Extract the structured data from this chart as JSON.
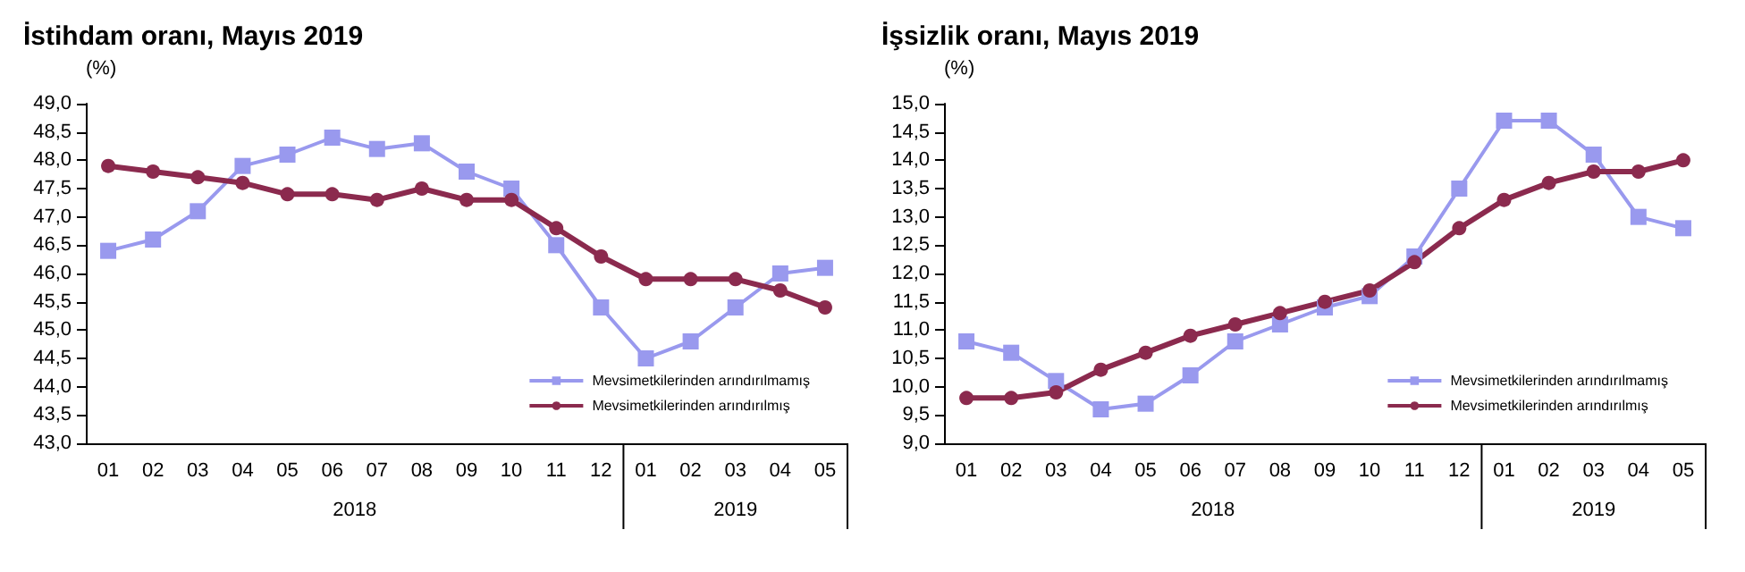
{
  "chart_data": [
    {
      "type": "line",
      "title": "İstihdam oranı, Mayıs 2019",
      "ylabel": "(%)",
      "categories": [
        "01",
        "02",
        "03",
        "04",
        "05",
        "06",
        "07",
        "08",
        "09",
        "10",
        "11",
        "12",
        "01",
        "02",
        "03",
        "04",
        "05"
      ],
      "series": [
        {
          "name": "Mevsimetkilerinden arındırılmamış",
          "color": "#9999ee",
          "marker": "square",
          "values": [
            46.4,
            46.6,
            47.1,
            47.9,
            48.1,
            48.4,
            48.2,
            48.3,
            47.8,
            47.5,
            46.5,
            45.4,
            44.5,
            44.8,
            45.4,
            46.0,
            46.1
          ]
        },
        {
          "name": "Mevsimetkilerinden arındırılmış",
          "color": "#8b2a4e",
          "marker": "circle",
          "values": [
            47.9,
            47.8,
            47.7,
            47.6,
            47.4,
            47.4,
            47.3,
            47.5,
            47.3,
            47.3,
            46.8,
            46.3,
            45.9,
            45.9,
            45.9,
            45.7,
            45.4
          ]
        }
      ],
      "ylim": [
        43,
        49
      ],
      "yticks": [
        {
          "value": 43,
          "label": "43,0"
        },
        {
          "value": 43.5,
          "label": "43,5"
        },
        {
          "value": 44,
          "label": "44,0"
        },
        {
          "value": 44.5,
          "label": "44,5"
        },
        {
          "value": 45,
          "label": "45,0"
        },
        {
          "value": 45.5,
          "label": "45,5"
        },
        {
          "value": 46,
          "label": "46,0"
        },
        {
          "value": 46.5,
          "label": "46,5"
        },
        {
          "value": 47,
          "label": "47,0"
        },
        {
          "value": 47.5,
          "label": "47,5"
        },
        {
          "value": 48,
          "label": "48,0"
        },
        {
          "value": 48.5,
          "label": "48,5"
        },
        {
          "value": 49,
          "label": "49,0"
        }
      ],
      "annotations": [
        "2018",
        "2019"
      ],
      "grid": false,
      "legend": "bottom right"
    },
    {
      "type": "line",
      "title": "İşsizlik oranı, Mayıs 2019",
      "ylabel": "(%)",
      "categories": [
        "01",
        "02",
        "03",
        "04",
        "05",
        "06",
        "07",
        "08",
        "09",
        "10",
        "11",
        "12",
        "01",
        "02",
        "03",
        "04",
        "05"
      ],
      "series": [
        {
          "name": "Mevsimetkilerinden arındırılmamış",
          "color": "#9999ee",
          "marker": "square",
          "values": [
            10.8,
            10.6,
            10.1,
            9.6,
            9.7,
            10.2,
            10.8,
            11.1,
            11.4,
            11.6,
            12.3,
            13.5,
            14.7,
            14.7,
            14.1,
            13.0,
            12.8
          ]
        },
        {
          "name": "Mevsimetkilerinden arındırılmış",
          "color": "#8b2a4e",
          "marker": "circle",
          "values": [
            9.8,
            9.8,
            9.9,
            10.3,
            10.6,
            10.9,
            11.1,
            11.3,
            11.5,
            11.7,
            12.2,
            12.8,
            13.3,
            13.6,
            13.8,
            13.8,
            14.0
          ]
        }
      ],
      "ylim": [
        9,
        15
      ],
      "yticks": [
        {
          "value": 9,
          "label": "9,0"
        },
        {
          "value": 9.5,
          "label": "9,5"
        },
        {
          "value": 10,
          "label": "10,0"
        },
        {
          "value": 10.5,
          "label": "10,5"
        },
        {
          "value": 11,
          "label": "11,0"
        },
        {
          "value": 11.5,
          "label": "11,5"
        },
        {
          "value": 12,
          "label": "12,0"
        },
        {
          "value": 12.5,
          "label": "12,5"
        },
        {
          "value": 13,
          "label": "13,0"
        },
        {
          "value": 13.5,
          "label": "13,5"
        },
        {
          "value": 14,
          "label": "14,0"
        },
        {
          "value": 14.5,
          "label": "14,5"
        },
        {
          "value": 15,
          "label": "15,0"
        }
      ],
      "annotations": [
        "2018",
        "2019"
      ],
      "grid": false,
      "legend": "bottom right"
    }
  ]
}
